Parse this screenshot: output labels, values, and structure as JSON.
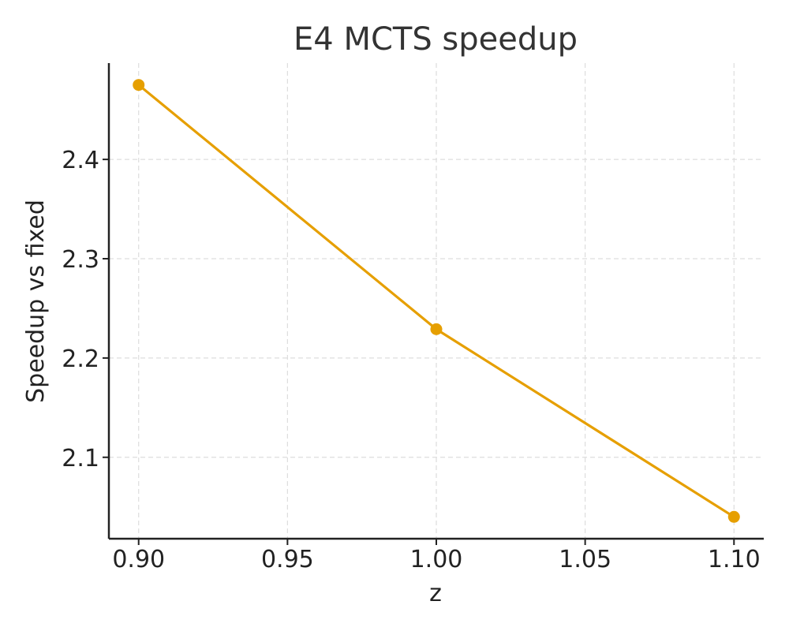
{
  "chart_data": {
    "type": "line",
    "title": "E4 MCTS speedup",
    "xlabel": "z",
    "ylabel": "Speedup vs fixed",
    "x": [
      0.9,
      1.0,
      1.1
    ],
    "series": [
      {
        "values": [
          2.475,
          2.229,
          2.04
        ],
        "color": "#E69F00"
      }
    ],
    "xlim": [
      0.89,
      1.11
    ],
    "ylim": [
      2.018,
      2.497
    ],
    "xticks": [
      0.9,
      0.95,
      1.0,
      1.05,
      1.1
    ],
    "xtick_labels": [
      "0.90",
      "0.95",
      "1.00",
      "1.05",
      "1.10"
    ],
    "yticks": [
      2.1,
      2.2,
      2.3,
      2.4
    ],
    "ytick_labels": [
      "2.1",
      "2.2",
      "2.3",
      "2.4"
    ],
    "grid": true,
    "legend": "none"
  }
}
